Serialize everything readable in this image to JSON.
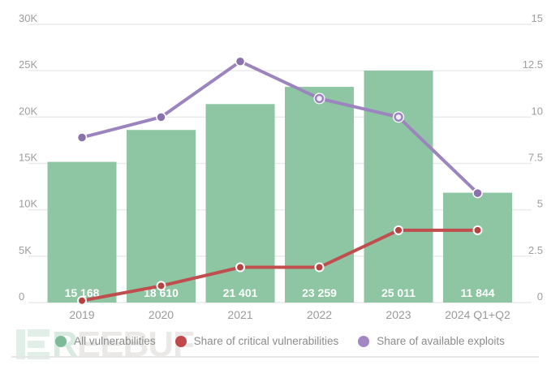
{
  "colors": {
    "bar": "#8ec5a3",
    "bar_label_text": "#ffffff",
    "critical_line": "#c04e4e",
    "critical_marker": "#b5423f",
    "exploits_line": "#9c85bf",
    "exploits_marker": "#8a72ac",
    "exploits_marker_hollow_fill": "#f1ecf7",
    "gridline": "#eaeaea",
    "axis_text": "#9e9e9e",
    "x_axis_text": "#9a9a9a",
    "legend_text": "#8c8c8c"
  },
  "legend": [
    {
      "label": "All vulnerabilities",
      "color": "#7cbb95"
    },
    {
      "label": "Share of critical vulnerabilities",
      "color": "#c0484a"
    },
    {
      "label": "Share of available exploits",
      "color": "#a287c4"
    }
  ],
  "watermark": {
    "part1": "R",
    "part2": "EEBUF"
  },
  "chart_data": {
    "type": "bar",
    "subtype": "combo-bar-with-two-lines",
    "categories": [
      "2019",
      "2020",
      "2021",
      "2022",
      "2023",
      "2024 Q1+Q2"
    ],
    "series": [
      {
        "name": "All vulnerabilities",
        "type": "bar",
        "axis": "left",
        "values": [
          15168,
          18610,
          21401,
          23259,
          25011,
          11844
        ],
        "value_labels": [
          "15 168",
          "18 610",
          "21 401",
          "23 259",
          "25 011",
          "11 844"
        ]
      },
      {
        "name": "Share of critical vulnerabilities",
        "type": "line",
        "axis": "right",
        "values": [
          0.1,
          0.9,
          1.9,
          1.9,
          3.9,
          3.9
        ]
      },
      {
        "name": "Share of available exploits",
        "type": "line",
        "axis": "right",
        "values": [
          8.9,
          10,
          13,
          11,
          10,
          5.9
        ],
        "hollow_marker_indices": [
          3,
          4
        ]
      }
    ],
    "left_axis": {
      "min": 0,
      "max": 30000,
      "tick_labels_bottom_to_top": [
        "0",
        "5K",
        "10K",
        "15K",
        "20K",
        "25K",
        "30K"
      ]
    },
    "right_axis": {
      "min": 0,
      "max": 15,
      "tick_labels_bottom_to_top": [
        "0",
        "2.5",
        "5",
        "7.5",
        "10",
        "12.5",
        "15"
      ]
    },
    "grid": true,
    "legend_position": "bottom"
  }
}
